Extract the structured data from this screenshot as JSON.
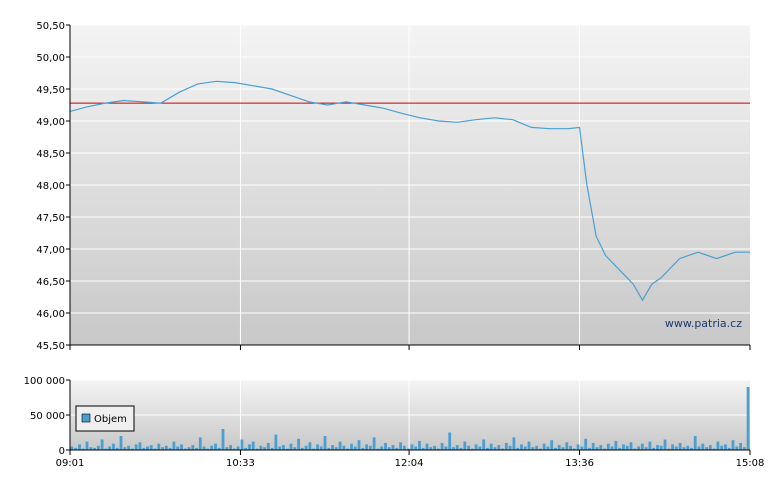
{
  "watermark": "www.patria.cz",
  "colors": {
    "price_line": "#4a9fd0",
    "reference_line": "#cc0000",
    "volume_bar": "#4a9fd0",
    "grid": "#ffffff",
    "axis": "#000000"
  },
  "chart_data": [
    {
      "type": "line",
      "ylim": [
        45.5,
        50.5
      ],
      "y_ticks": [
        "50,50",
        "50,00",
        "49,50",
        "49,00",
        "48,50",
        "48,00",
        "47,50",
        "47,00",
        "46,50",
        "46,00",
        "45,50"
      ],
      "y_tick_values": [
        50.5,
        50.0,
        49.5,
        49.0,
        48.5,
        48.0,
        47.5,
        47.0,
        46.5,
        46.0,
        45.5
      ],
      "grid": true,
      "reference_line": {
        "value": 49.28
      },
      "series": [
        {
          "x": [
            "09:01",
            "09:10",
            "09:20",
            "09:30",
            "09:40",
            "09:50",
            "10:00",
            "10:10",
            "10:20",
            "10:30",
            "10:40",
            "10:50",
            "11:00",
            "11:10",
            "11:20",
            "11:30",
            "11:40",
            "11:50",
            "12:00",
            "12:10",
            "12:20",
            "12:30",
            "12:40",
            "12:50",
            "13:00",
            "13:10",
            "13:20",
            "13:30",
            "13:36",
            "13:40",
            "13:45",
            "13:50",
            "14:00",
            "14:05",
            "14:10",
            "14:15",
            "14:20",
            "14:30",
            "14:40",
            "14:50",
            "15:00",
            "15:08"
          ],
          "values": [
            49.15,
            49.22,
            49.28,
            49.32,
            49.3,
            49.28,
            49.45,
            49.58,
            49.62,
            49.6,
            49.55,
            49.5,
            49.4,
            49.3,
            49.25,
            49.3,
            49.25,
            49.2,
            49.12,
            49.05,
            49.0,
            48.98,
            49.02,
            49.05,
            49.02,
            48.9,
            48.88,
            48.88,
            48.9,
            48.0,
            47.2,
            46.9,
            46.6,
            46.45,
            46.2,
            46.45,
            46.55,
            46.85,
            46.95,
            46.85,
            46.95,
            46.95
          ]
        }
      ]
    },
    {
      "type": "bar",
      "ylim": [
        0,
        100000
      ],
      "y_ticks": [
        "100 000",
        "50 000",
        "0"
      ],
      "y_tick_values": [
        100000,
        50000,
        0
      ],
      "x_ticks": [
        "09:01",
        "10:33",
        "12:04",
        "13:36",
        "15:08"
      ],
      "grid": true,
      "legend": {
        "position": "left",
        "entries": [
          "Objem"
        ]
      },
      "series": [
        {
          "name": "Objem",
          "values": [
            5000,
            3000,
            8000,
            2000,
            12000,
            4000,
            3000,
            6000,
            15000,
            2000,
            5000,
            9000,
            3000,
            20000,
            4000,
            6000,
            2000,
            8000,
            11000,
            3000,
            5000,
            7000,
            2000,
            9000,
            4000,
            6000,
            3000,
            12000,
            5000,
            8000,
            2000,
            4000,
            7000,
            3000,
            18000,
            5000,
            2000,
            6000,
            9000,
            3000,
            30000,
            4000,
            7000,
            2000,
            5000,
            15000,
            3000,
            8000,
            12000,
            2000,
            6000,
            4000,
            10000,
            3000,
            22000,
            5000,
            7000,
            2000,
            9000,
            4000,
            16000,
            3000,
            6000,
            11000,
            2000,
            8000,
            5000,
            20000,
            3000,
            7000,
            4000,
            12000,
            6000,
            2000,
            9000,
            5000,
            14000,
            3000,
            8000,
            6000,
            18000,
            2000,
            5000,
            10000,
            4000,
            7000,
            3000,
            11000,
            6000,
            2000,
            8000,
            5000,
            13000,
            3000,
            9000,
            4000,
            6000,
            2000,
            10000,
            5000,
            25000,
            4000,
            7000,
            3000,
            12000,
            6000,
            2000,
            8000,
            5000,
            15000,
            3000,
            9000,
            4000,
            7000,
            2000,
            10000,
            6000,
            18000,
            3000,
            8000,
            5000,
            12000,
            4000,
            6000,
            2000,
            9000,
            5000,
            14000,
            3000,
            7000,
            4000,
            11000,
            6000,
            2000,
            8000,
            5000,
            16000,
            3000,
            10000,
            4000,
            7000,
            2000,
            9000,
            5000,
            13000,
            3000,
            8000,
            6000,
            11000,
            2000,
            5000,
            9000,
            4000,
            12000,
            3000,
            7000,
            6000,
            15000,
            2000,
            8000,
            5000,
            10000,
            4000,
            6000,
            3000,
            20000,
            5000,
            9000,
            4000,
            7000,
            2000,
            12000,
            6000,
            8000,
            3000,
            14000,
            5000,
            10000,
            4000,
            90000
          ]
        }
      ]
    }
  ]
}
